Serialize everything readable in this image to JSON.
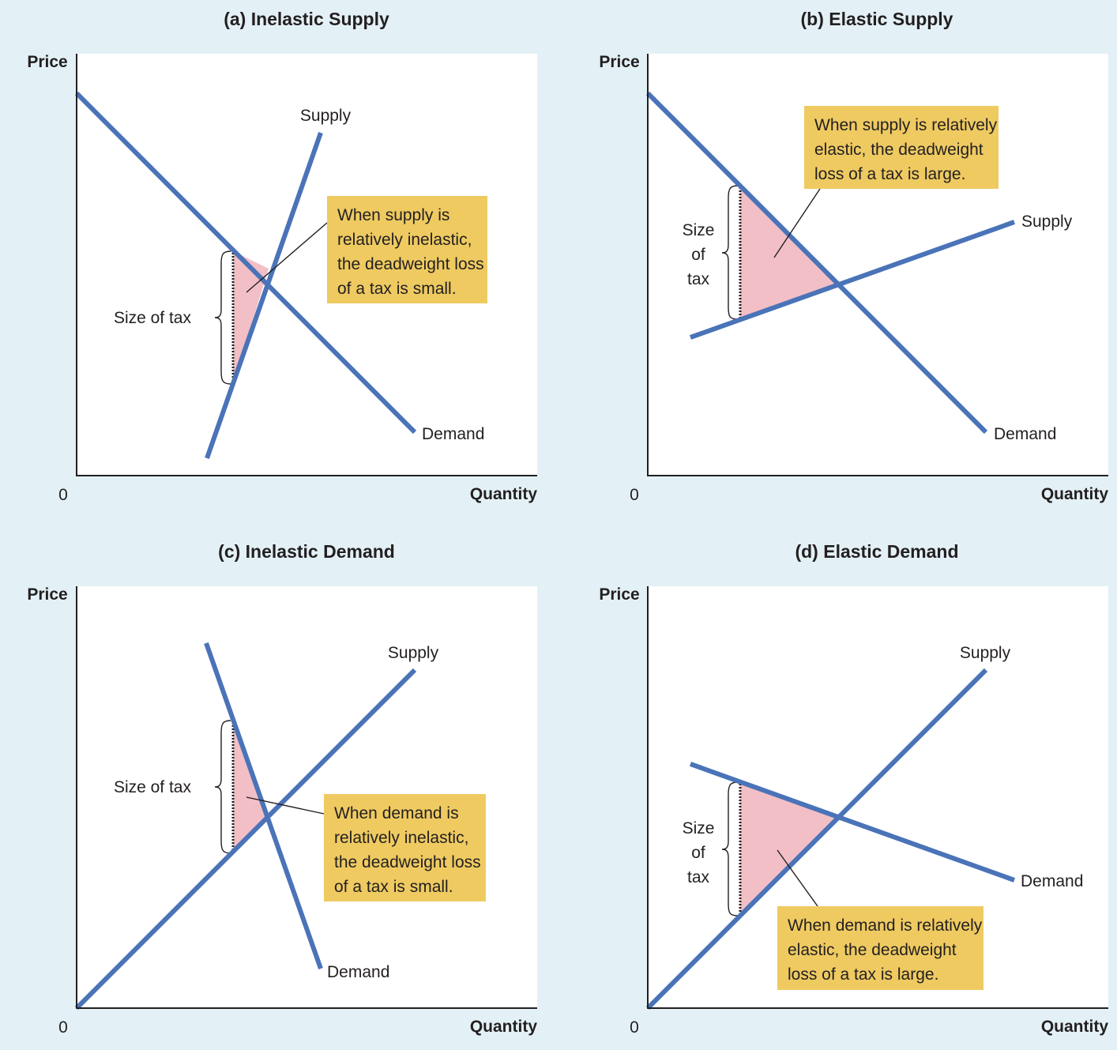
{
  "colors": {
    "page_background": "#e3f1f6",
    "plot_background": "#ffffff",
    "curve_color": "#4a73b8",
    "deadweight_loss_fill": "#f2bfc6",
    "annotation_box": "#eeca61"
  },
  "panels": [
    {
      "id": "a",
      "title": "(a) Inelastic Supply",
      "y_axis_label": "Price",
      "x_axis_label": "Quantity",
      "origin_label": "0",
      "supply_label": "Supply",
      "demand_label": "Demand",
      "tax_label_lines": [
        "Size of tax"
      ],
      "annotation_lines": [
        "When supply is",
        "relatively inelastic,",
        "the deadweight loss",
        "of a tax is small."
      ]
    },
    {
      "id": "b",
      "title": "(b) Elastic Supply",
      "y_axis_label": "Price",
      "x_axis_label": "Quantity",
      "origin_label": "0",
      "supply_label": "Supply",
      "demand_label": "Demand",
      "tax_label_lines": [
        "Size",
        "of",
        "tax"
      ],
      "annotation_lines": [
        "When supply is relatively",
        "elastic, the deadweight",
        "loss of a tax is large."
      ]
    },
    {
      "id": "c",
      "title": "(c) Inelastic Demand",
      "y_axis_label": "Price",
      "x_axis_label": "Quantity",
      "origin_label": "0",
      "supply_label": "Supply",
      "demand_label": "Demand",
      "tax_label_lines": [
        "Size of tax"
      ],
      "annotation_lines": [
        "When demand is",
        "relatively inelastic,",
        "the deadweight loss",
        "of a tax is small."
      ]
    },
    {
      "id": "d",
      "title": "(d) Elastic Demand",
      "y_axis_label": "Price",
      "x_axis_label": "Quantity",
      "origin_label": "0",
      "supply_label": "Supply",
      "demand_label": "Demand",
      "tax_label_lines": [
        "Size",
        "of",
        "tax"
      ],
      "annotation_lines": [
        "When demand is relatively",
        "elastic, the deadweight",
        "loss of a tax is large."
      ]
    }
  ]
}
